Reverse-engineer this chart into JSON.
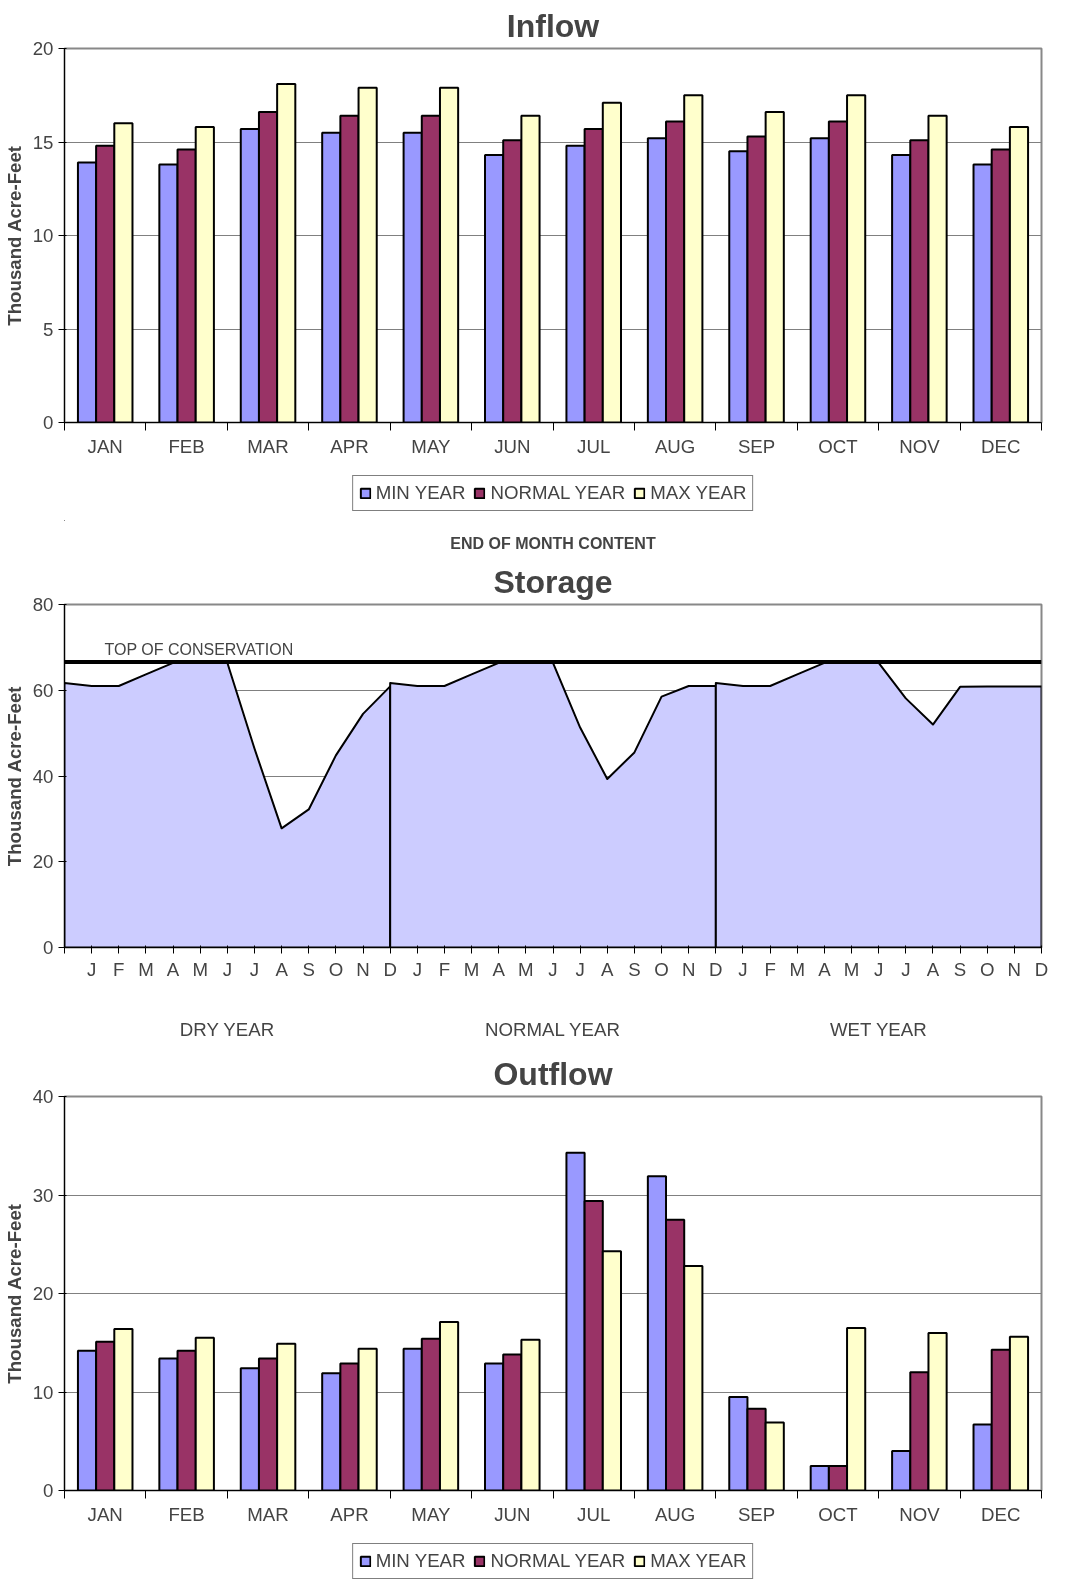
{
  "chart_data": [
    {
      "type": "bar",
      "title": "Inflow",
      "ylabel": "Thousand Acre-Feet",
      "categories": [
        "JAN",
        "FEB",
        "MAR",
        "APR",
        "MAY",
        "JUN",
        "JUL",
        "AUG",
        "SEP",
        "OCT",
        "NOV",
        "DEC"
      ],
      "series": [
        {
          "name": "MIN YEAR",
          "color": "#9999ff",
          "values": [
            13.9,
            13.8,
            15.7,
            15.5,
            15.5,
            14.3,
            14.8,
            15.2,
            14.5,
            15.2,
            14.3,
            13.8
          ]
        },
        {
          "name": "NORMAL YEAR",
          "color": "#993366",
          "values": [
            14.8,
            14.6,
            16.6,
            16.4,
            16.4,
            15.1,
            15.7,
            16.1,
            15.3,
            16.1,
            15.1,
            14.6
          ]
        },
        {
          "name": "MAX YEAR",
          "color": "#ffffcc",
          "values": [
            16.0,
            15.8,
            18.1,
            17.9,
            17.9,
            16.4,
            17.1,
            17.5,
            16.6,
            17.5,
            16.4,
            15.8
          ]
        }
      ],
      "ylim": [
        0,
        20
      ],
      "yticks": [
        0,
        5,
        10,
        15,
        20
      ],
      "grid": "y",
      "legend": "bottom"
    },
    {
      "type": "area",
      "title": "Storage",
      "subtitle": "END OF MONTH CONTENT",
      "ylabel": "Thousand Acre-Feet",
      "series": [
        {
          "color": "#ccccff",
          "values": [
            61.7,
            61.0,
            61.0,
            63.7,
            66.4,
            66.4,
            66.4,
            46.4,
            27.8,
            32.2,
            44.8,
            54.5,
            60.9,
            null,
            null,
            null,
            null,
            null,
            null,
            null,
            null,
            null,
            null,
            null,
            null,
            null,
            null,
            null,
            null,
            null,
            null,
            null,
            null,
            null,
            null,
            null,
            null
          ]
        },
        {
          "color": "#ccccff",
          "values": [
            null,
            null,
            null,
            null,
            null,
            null,
            null,
            null,
            null,
            null,
            null,
            null,
            61.7,
            61.0,
            61.0,
            63.7,
            66.4,
            66.4,
            66.4,
            51.3,
            39.3,
            45.5,
            58.5,
            61.0,
            61.0,
            null,
            null,
            null,
            null,
            null,
            null,
            null,
            null,
            null,
            null,
            null,
            null
          ]
        },
        {
          "color": "#ccccff",
          "values": [
            null,
            null,
            null,
            null,
            null,
            null,
            null,
            null,
            null,
            null,
            null,
            null,
            null,
            null,
            null,
            null,
            null,
            null,
            null,
            null,
            null,
            null,
            null,
            null,
            61.7,
            61.0,
            61.0,
            63.7,
            66.4,
            66.4,
            66.4,
            58.1,
            52.0,
            60.8,
            60.9,
            60.9,
            60.9
          ]
        }
      ],
      "categories": [
        null,
        "J",
        "F",
        "M",
        "A",
        "M",
        "J",
        "J",
        "A",
        "S",
        "O",
        "N",
        "D",
        "J",
        "F",
        "M",
        "A",
        "M",
        "J",
        "J",
        "A",
        "S",
        "O",
        "N",
        "D",
        "J",
        "F",
        "M",
        "A",
        "M",
        "J",
        "J",
        "A",
        "S",
        "O",
        "N",
        "D"
      ],
      "ylim": [
        0,
        80
      ],
      "yticks": [
        0,
        20,
        40,
        60,
        80
      ],
      "grid": "y",
      "ref_lines": [
        {
          "axis": "y",
          "value": 66.6,
          "label": "TOP OF CONSERVATION",
          "color": "#000000"
        }
      ],
      "annotations": [
        "DRY YEAR",
        "NORMAL YEAR",
        "WET YEAR"
      ]
    },
    {
      "type": "bar",
      "title": "Outflow",
      "ylabel": "Thousand Acre-Feet",
      "categories": [
        "JAN",
        "FEB",
        "MAR",
        "APR",
        "MAY",
        "JUN",
        "JUL",
        "AUG",
        "SEP",
        "OCT",
        "NOV",
        "DEC"
      ],
      "series": [
        {
          "name": "MIN YEAR",
          "color": "#9999ff",
          "values": [
            14.2,
            13.4,
            12.4,
            11.9,
            14.4,
            12.9,
            34.3,
            31.9,
            9.5,
            2.5,
            4.0,
            6.7
          ]
        },
        {
          "name": "NORMAL YEAR",
          "color": "#993366",
          "values": [
            15.1,
            14.2,
            13.4,
            12.9,
            15.4,
            13.8,
            29.4,
            27.5,
            8.3,
            2.5,
            12.0,
            14.3
          ]
        },
        {
          "name": "MAX YEAR",
          "color": "#ffffcc",
          "values": [
            16.4,
            15.5,
            14.9,
            14.4,
            17.1,
            15.3,
            24.3,
            22.8,
            6.9,
            16.5,
            16.0,
            15.6
          ]
        }
      ],
      "ylim": [
        0,
        40
      ],
      "yticks": [
        0,
        10,
        20,
        30,
        40
      ],
      "grid": "y",
      "legend": "bottom"
    }
  ]
}
